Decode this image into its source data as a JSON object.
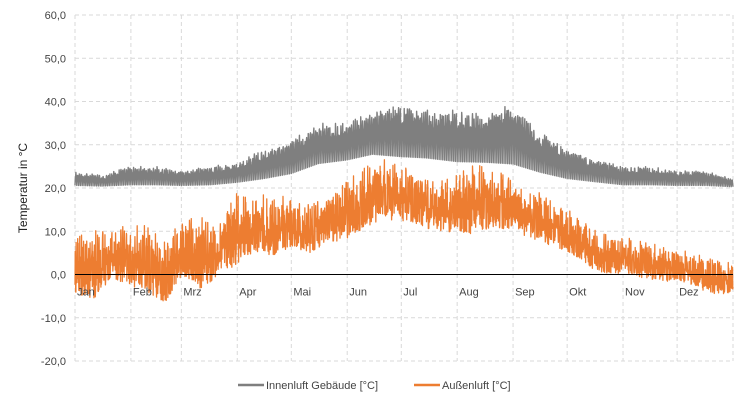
{
  "chart_data": {
    "type": "line",
    "title": "",
    "xlabel": "",
    "ylabel": "Temperatur in °C",
    "ylim": [
      -20,
      60
    ],
    "yticks": [
      -20,
      -10,
      0,
      10,
      20,
      30,
      40,
      50,
      60
    ],
    "ytick_labels": [
      "-20,0",
      "-10,0",
      "0,0",
      "10,0",
      "20,0",
      "30,0",
      "40,0",
      "50,0",
      "60,0"
    ],
    "xlim": [
      0,
      365
    ],
    "months": [
      "Jan",
      "Feb",
      "Mrz",
      "Apr",
      "Mai",
      "Jun",
      "Jul",
      "Aug",
      "Sep",
      "Okt",
      "Nov",
      "Dez"
    ],
    "month_start_days": [
      0,
      31,
      59,
      90,
      120,
      151,
      181,
      212,
      243,
      273,
      304,
      334
    ],
    "grid": true,
    "legend_position": "bottom",
    "series": [
      {
        "name": "Innenluft Gebäude [°C]",
        "color": "#7f7f7f",
        "x": [
          0,
          15,
          31,
          45,
          59,
          75,
          90,
          105,
          120,
          135,
          151,
          165,
          181,
          195,
          212,
          228,
          243,
          258,
          273,
          288,
          304,
          320,
          334,
          350,
          365
        ],
        "daily_min": [
          20,
          20,
          20,
          20,
          20,
          20,
          20.5,
          21,
          22,
          24,
          25,
          26,
          25,
          25,
          24,
          24,
          23,
          22,
          21,
          20.5,
          20,
          20,
          20,
          20,
          20
        ],
        "daily_max": [
          24,
          23,
          25,
          25,
          24,
          25,
          26,
          29,
          31,
          35,
          35,
          38,
          40,
          38,
          38,
          37,
          40,
          33,
          29,
          27,
          25,
          25,
          24,
          24,
          22
        ]
      },
      {
        "name": "Außenluft [°C]",
        "color": "#ed7d31",
        "x": [
          0,
          10,
          20,
          31,
          40,
          50,
          59,
          70,
          80,
          90,
          100,
          110,
          120,
          130,
          140,
          151,
          160,
          170,
          181,
          190,
          200,
          212,
          220,
          230,
          243,
          250,
          260,
          273,
          280,
          290,
          304,
          315,
          325,
          334,
          345,
          355,
          365
        ],
        "daily_min": [
          -8,
          -10,
          -4,
          -6,
          -8,
          -10,
          -4,
          -8,
          -3,
          -2,
          2,
          1,
          3,
          2,
          4,
          5,
          7,
          9,
          9,
          8,
          7,
          6,
          5,
          6,
          8,
          6,
          4,
          3,
          1,
          -2,
          -2,
          -3,
          -4,
          -3,
          -5,
          -7,
          -6
        ],
        "daily_max": [
          10,
          10,
          12,
          11,
          12,
          8,
          13,
          14,
          12,
          20,
          19,
          18,
          20,
          17,
          19,
          22,
          25,
          28,
          26,
          24,
          22,
          24,
          27,
          26,
          22,
          20,
          19,
          15,
          14,
          10,
          9,
          8,
          7,
          6,
          5,
          4,
          3
        ]
      }
    ]
  }
}
